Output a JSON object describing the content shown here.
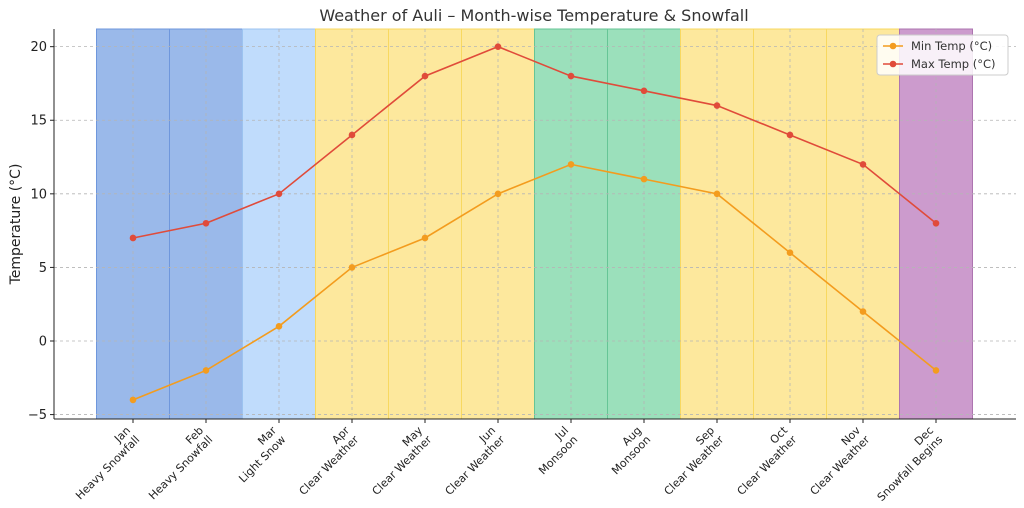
{
  "chart_data": {
    "type": "line",
    "title": "Weather of Auli – Month-wise Temperature & Snowfall",
    "xlabel": "",
    "ylabel": "Temperature (°C)",
    "ylim": [
      -5.3,
      21.2
    ],
    "yticks": [
      -5,
      0,
      5,
      10,
      15,
      20
    ],
    "grid": true,
    "legend_position": "top-right",
    "categories": [
      {
        "month": "Jan",
        "condition": "Heavy Snowfall"
      },
      {
        "month": "Feb",
        "condition": "Heavy Snowfall"
      },
      {
        "month": "Mar",
        "condition": "Light Snow"
      },
      {
        "month": "Apr",
        "condition": "Clear Weather"
      },
      {
        "month": "May",
        "condition": "Clear Weather"
      },
      {
        "month": "Jun",
        "condition": "Clear Weather"
      },
      {
        "month": "Jul",
        "condition": "Monsoon"
      },
      {
        "month": "Aug",
        "condition": "Monsoon"
      },
      {
        "month": "Sep",
        "condition": "Clear Weather"
      },
      {
        "month": "Oct",
        "condition": "Clear Weather"
      },
      {
        "month": "Nov",
        "condition": "Clear Weather"
      },
      {
        "month": "Dec",
        "condition": "Snowfall Begins"
      }
    ],
    "condition_colors": {
      "Heavy Snowfall": {
        "fill": "#9ab9ea",
        "edge": "#6f97dc"
      },
      "Light Snow": {
        "fill": "#c0dcfc",
        "edge": "#9cc3f0"
      },
      "Clear Weather": {
        "fill": "#fde89d",
        "edge": "#f8d860"
      },
      "Monsoon": {
        "fill": "#9be0bb",
        "edge": "#66c596"
      },
      "Snowfall Begins": {
        "fill": "#cc9bcd",
        "edge": "#ad75b0"
      }
    },
    "series": [
      {
        "name": "Min Temp (°C)",
        "color": "#f39c1e",
        "values": [
          -4,
          -2,
          1,
          5,
          7,
          10,
          12,
          11,
          10,
          6,
          2,
          -2
        ]
      },
      {
        "name": "Max Temp (°C)",
        "color": "#e04b3a",
        "values": [
          7,
          8,
          10,
          14,
          18,
          20,
          18,
          17,
          16,
          14,
          12,
          8
        ]
      }
    ]
  }
}
